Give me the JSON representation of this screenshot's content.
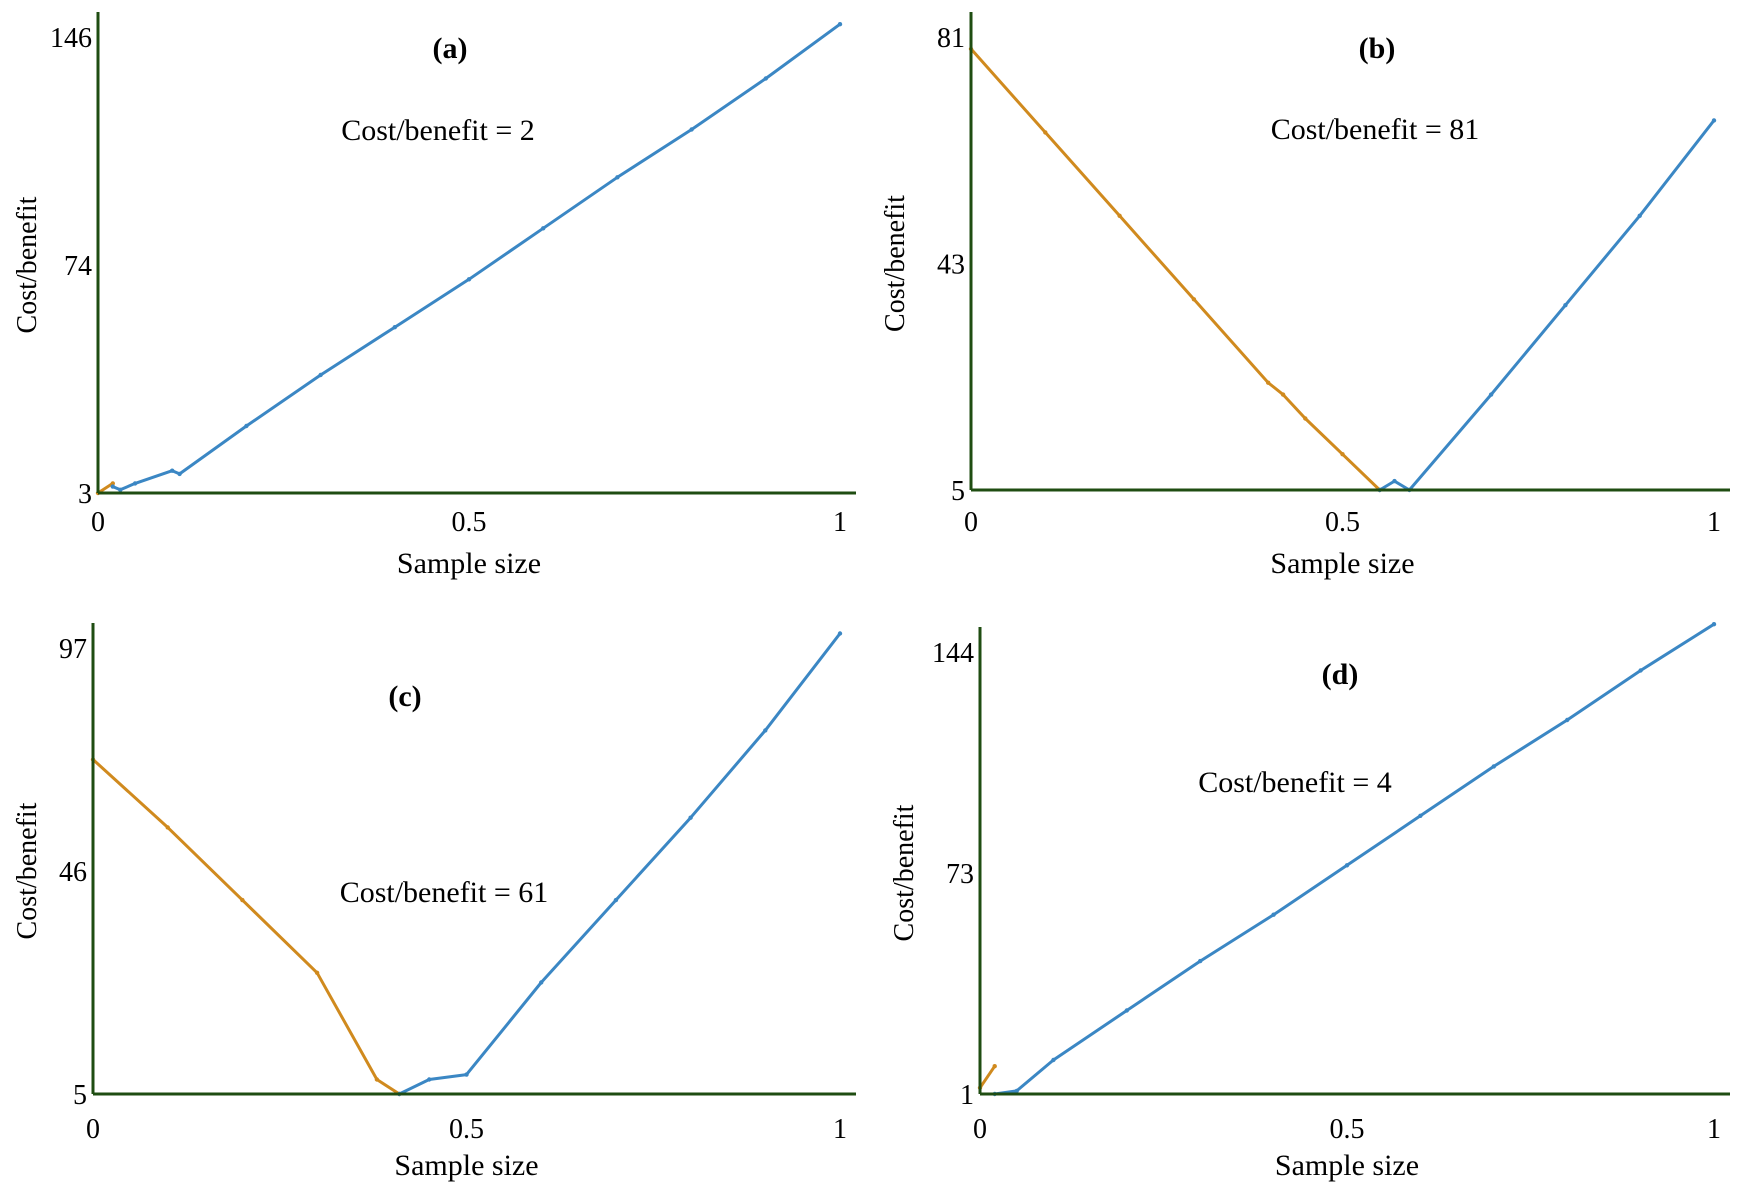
{
  "colors": {
    "axis": "#1f4d12",
    "descending_line": "#d08a1e",
    "ascending_line": "#3b87c4",
    "background": "#ffffff"
  },
  "chart_data": [
    {
      "type": "line",
      "panel_label": "(a)",
      "annotation": "Cost/benefit  = 2",
      "xlabel": "Sample size",
      "ylabel": "Cost/benefit",
      "xlim": [
        0,
        1
      ],
      "ylim": [
        3,
        146
      ],
      "x_ticks": [
        "0",
        "0.5",
        "1"
      ],
      "y_ticks": [
        "3",
        "74",
        "146"
      ],
      "grid": false,
      "series": [
        {
          "color": "orange",
          "x": [
            0,
            0.02
          ],
          "y": [
            3,
            6
          ]
        },
        {
          "color": "blue",
          "x": [
            0.02,
            0.03,
            0.05,
            0.1,
            0.11,
            0.2,
            0.3,
            0.4,
            0.5,
            0.6,
            0.7,
            0.8,
            0.9,
            1.0
          ],
          "y": [
            5,
            4,
            6,
            10,
            9,
            24,
            40,
            55,
            70,
            86,
            102,
            117,
            133,
            150
          ]
        }
      ]
    },
    {
      "type": "line",
      "panel_label": "(b)",
      "annotation": "Cost/benefit  = 81",
      "xlabel": "Sample size",
      "ylabel": "Cost/benefit",
      "xlim": [
        0,
        1
      ],
      "ylim": [
        5,
        81
      ],
      "x_ticks": [
        "0",
        "0.5",
        "1"
      ],
      "y_ticks": [
        "5",
        "43",
        "81"
      ],
      "grid": false,
      "series": [
        {
          "color": "orange",
          "x": [
            0,
            0.1,
            0.2,
            0.3,
            0.4,
            0.42,
            0.45,
            0.5,
            0.55
          ],
          "y": [
            79,
            65,
            51,
            37,
            23,
            21,
            17,
            11,
            5
          ]
        },
        {
          "color": "blue",
          "x": [
            0.55,
            0.57,
            0.59,
            0.7,
            0.8,
            0.9,
            1.0
          ],
          "y": [
            5,
            6.5,
            5,
            21,
            36,
            51,
            67
          ]
        }
      ]
    },
    {
      "type": "line",
      "panel_label": "(c)",
      "annotation": "Cost/benefit  = 61",
      "xlabel": "Sample size",
      "ylabel": "Cost/benefit",
      "xlim": [
        0,
        1
      ],
      "ylim": [
        5,
        97
      ],
      "x_ticks": [
        "0",
        "0.5",
        "1"
      ],
      "y_ticks": [
        "5",
        "46",
        "97"
      ],
      "grid": false,
      "series": [
        {
          "color": "orange",
          "x": [
            0,
            0.1,
            0.2,
            0.3,
            0.38,
            0.41
          ],
          "y": [
            74,
            60,
            45,
            30,
            8,
            5
          ]
        },
        {
          "color": "blue",
          "x": [
            0.41,
            0.45,
            0.5,
            0.6,
            0.7,
            0.8,
            0.9,
            1.0
          ],
          "y": [
            5,
            8,
            9,
            28,
            45,
            62,
            80,
            100
          ]
        }
      ]
    },
    {
      "type": "line",
      "panel_label": "(d)",
      "annotation": "Cost/benefit  = 4",
      "xlabel": "Sample size",
      "ylabel": "Cost/benefit",
      "xlim": [
        0,
        1
      ],
      "ylim": [
        1,
        144
      ],
      "x_ticks": [
        "0",
        "0.5",
        "1"
      ],
      "y_ticks": [
        "1",
        "73",
        "144"
      ],
      "grid": false,
      "series": [
        {
          "color": "orange",
          "x": [
            0,
            0.02
          ],
          "y": [
            3,
            10
          ]
        },
        {
          "color": "blue",
          "x": [
            0.02,
            0.05,
            0.1,
            0.2,
            0.3,
            0.4,
            0.5,
            0.6,
            0.7,
            0.8,
            0.9,
            1.0
          ],
          "y": [
            1,
            2,
            12,
            28,
            44,
            59,
            75,
            91,
            107,
            122,
            138,
            153
          ]
        }
      ]
    }
  ]
}
